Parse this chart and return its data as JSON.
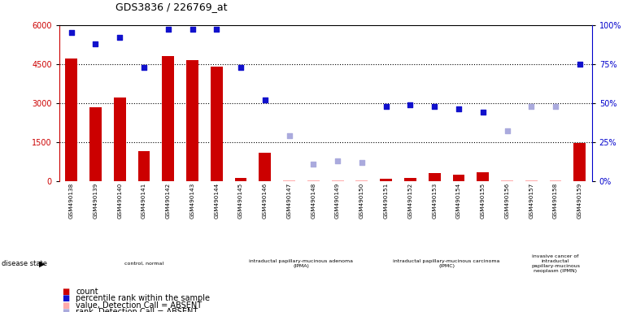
{
  "title": "GDS3836 / 226769_at",
  "samples": [
    "GSM490138",
    "GSM490139",
    "GSM490140",
    "GSM490141",
    "GSM490142",
    "GSM490143",
    "GSM490144",
    "GSM490145",
    "GSM490146",
    "GSM490147",
    "GSM490148",
    "GSM490149",
    "GSM490150",
    "GSM490151",
    "GSM490152",
    "GSM490153",
    "GSM490154",
    "GSM490155",
    "GSM490156",
    "GSM490157",
    "GSM490158",
    "GSM490159"
  ],
  "count_values": [
    4700,
    2850,
    3200,
    1150,
    4800,
    4650,
    4400,
    120,
    1100,
    30,
    30,
    30,
    30,
    100,
    130,
    300,
    250,
    350,
    30,
    30,
    30,
    1450
  ],
  "count_absent": [
    false,
    false,
    false,
    false,
    false,
    false,
    false,
    false,
    false,
    true,
    true,
    true,
    true,
    false,
    false,
    false,
    false,
    false,
    true,
    true,
    true,
    false
  ],
  "rank_pct": [
    95,
    88,
    92,
    73,
    97,
    97,
    97,
    73,
    52,
    29,
    11,
    13,
    12,
    48,
    49,
    48,
    46,
    44,
    32,
    48,
    48,
    75
  ],
  "rank_absent": [
    false,
    false,
    false,
    false,
    false,
    false,
    false,
    false,
    false,
    true,
    true,
    true,
    true,
    false,
    false,
    false,
    false,
    false,
    true,
    true,
    true,
    false
  ],
  "ylim_left": [
    0,
    6000
  ],
  "ylim_right": [
    0,
    100
  ],
  "yticks_left": [
    0,
    1500,
    3000,
    4500,
    6000
  ],
  "yticks_right": [
    0,
    25,
    50,
    75,
    100
  ],
  "disease_groups": [
    {
      "label": "control, normal",
      "start": 0,
      "end": 7
    },
    {
      "label": "intraductal papillary-mucinous adenoma\n(IPMA)",
      "start": 7,
      "end": 13
    },
    {
      "label": "intraductal papillary-mucinous carcinoma\n(IPMC)",
      "start": 13,
      "end": 19
    },
    {
      "label": "invasive cancer of\nintraductal\npapillary-mucinous\nneoplasm (IPMN)",
      "start": 19,
      "end": 22
    }
  ],
  "group_colors": [
    "#ccffcc",
    "#aaffaa",
    "#aaffaa",
    "#aaffaa"
  ],
  "bar_color": "#cc0000",
  "bar_absent_color": "#ffaaaa",
  "rank_color": "#1111cc",
  "rank_absent_color": "#aaaadd",
  "bg_color": "#ffffff",
  "plot_bg": "#ffffff",
  "cell_bg": "#cccccc",
  "right_axis_color": "#0000cc"
}
